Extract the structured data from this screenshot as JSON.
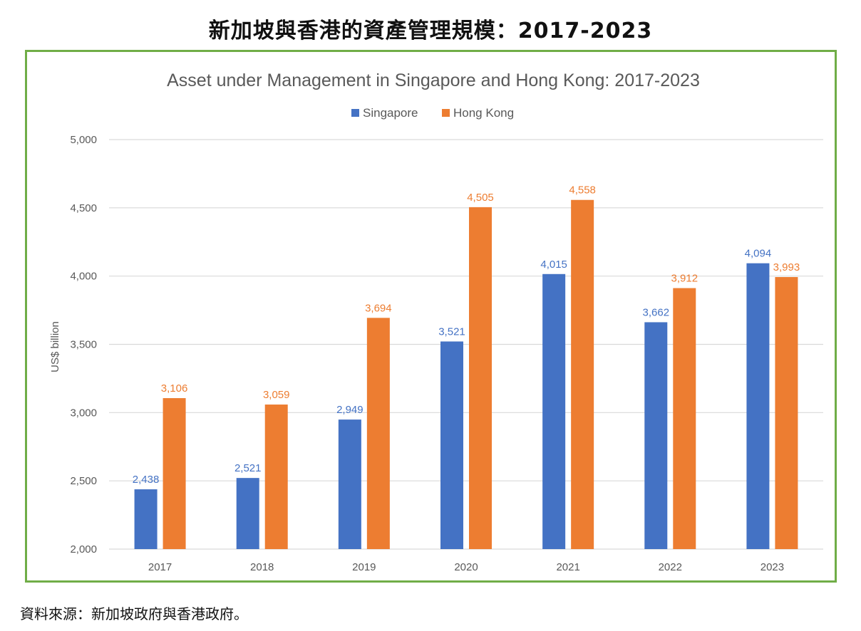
{
  "page": {
    "heading": "新加坡與香港的資產管理規模：2017-2023",
    "source": "資料來源：新加坡政府與香港政府。"
  },
  "colors": {
    "singapore": "#4472c4",
    "hong_kong": "#ed7d31",
    "frame": "#70ad47",
    "grid": "#d9d9d9",
    "axis_text": "#595959"
  },
  "chart_data": {
    "type": "bar",
    "title": "Asset under Management in Singapore and Hong Kong: 2017-2023",
    "xlabel": "",
    "ylabel": "US$ billion",
    "categories": [
      "2017",
      "2018",
      "2019",
      "2020",
      "2021",
      "2022",
      "2023"
    ],
    "series": [
      {
        "name": "Singapore",
        "values": [
          2438,
          2521,
          2949,
          3521,
          4015,
          3662,
          4094
        ],
        "labels": [
          "2,438",
          "2,521",
          "2,949",
          "3,521",
          "4,015",
          "3,662",
          "4,094"
        ]
      },
      {
        "name": "Hong Kong",
        "values": [
          3106,
          3059,
          3694,
          4505,
          4558,
          3912,
          3993
        ],
        "labels": [
          "3,106",
          "3,059",
          "3,694",
          "4,505",
          "4,558",
          "3,912",
          "3,993"
        ]
      }
    ],
    "ylim": [
      2000,
      5000
    ],
    "yticks": [
      2000,
      2500,
      3000,
      3500,
      4000,
      4500,
      5000
    ],
    "ytick_labels": [
      "2,000",
      "2,500",
      "3,000",
      "3,500",
      "4,000",
      "4,500",
      "5,000"
    ],
    "grid": true,
    "legend_position": "top"
  }
}
